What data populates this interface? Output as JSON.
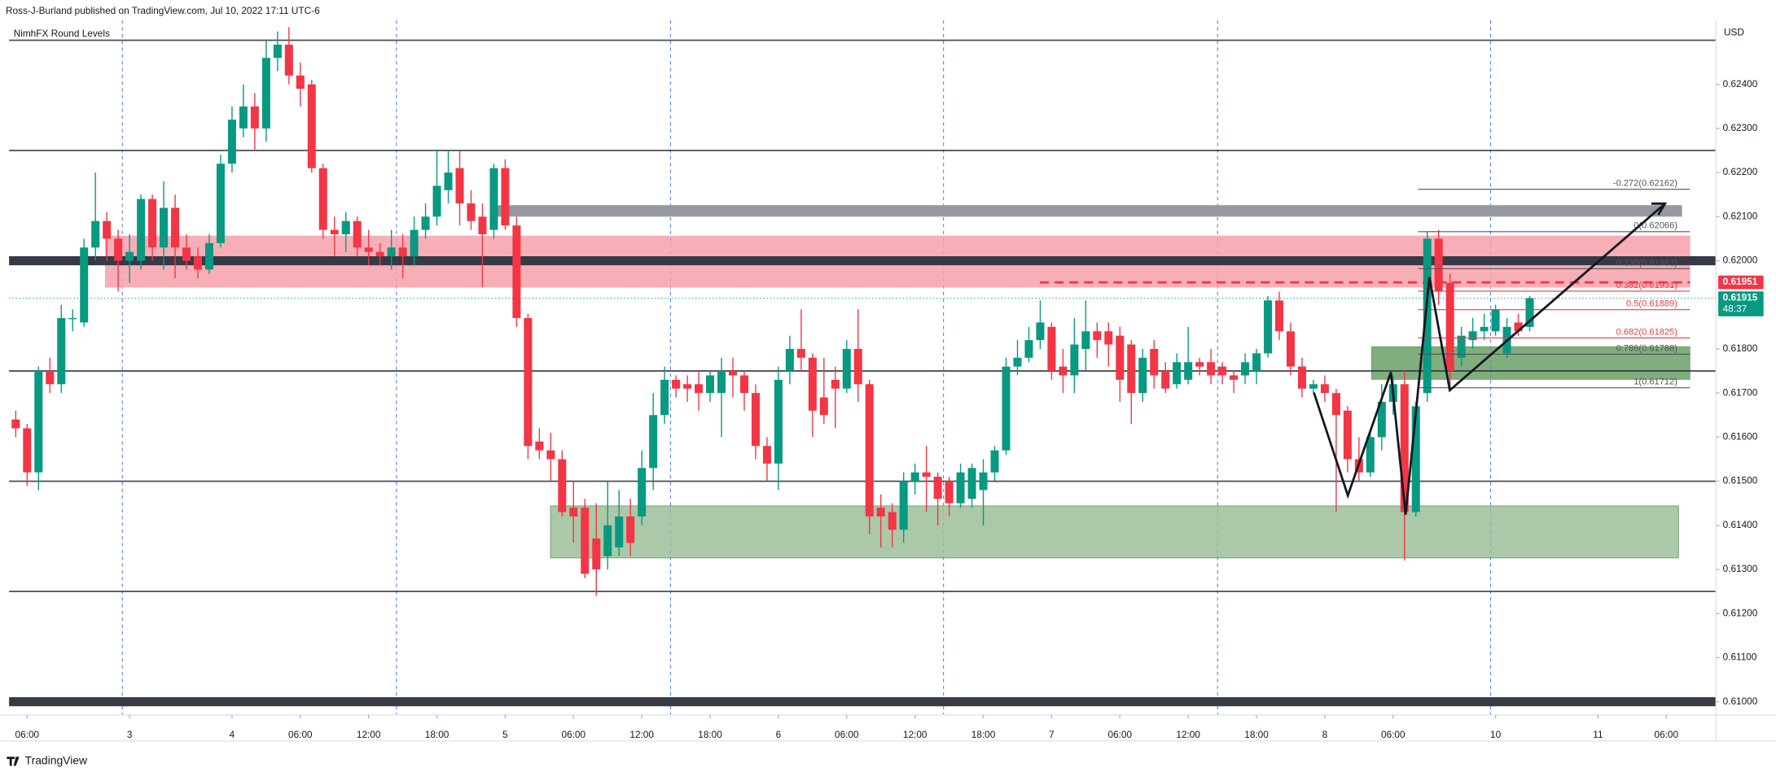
{
  "header": {
    "publisher": "Ross-J-Burland published on TradingView.com, Jul 10, 2022 17:11 UTC-6",
    "indicator": "NimhFX Round Levels",
    "currency": "USD",
    "brand": "TradingView"
  },
  "chart_data": {
    "type": "candlestick",
    "up_color": "#089981",
    "down_color": "#f23645",
    "categories": [
      null,
      "06:00",
      null,
      null,
      null,
      null,
      null,
      null,
      null,
      null,
      "3",
      null,
      null,
      null,
      null,
      null,
      null,
      null,
      null,
      "4",
      null,
      null,
      null,
      null,
      null,
      "06:00",
      null,
      null,
      null,
      null,
      null,
      "12:00",
      null,
      null,
      null,
      null,
      null,
      "18:00",
      null,
      null,
      null,
      null,
      null,
      "5",
      null,
      null,
      null,
      null,
      null,
      "06:00",
      null,
      null,
      null,
      null,
      null,
      "12:00",
      null,
      null,
      null,
      null,
      null,
      "18:00",
      null,
      null,
      null,
      null,
      null,
      "6",
      null,
      null,
      null,
      null,
      null,
      "06:00",
      null,
      null,
      null,
      null,
      null,
      "12:00",
      null,
      null,
      null,
      null,
      null,
      "18:00",
      null,
      null,
      null,
      null,
      null,
      "7",
      null,
      null,
      null,
      null,
      null,
      "06:00",
      null,
      null,
      null,
      null,
      null,
      "12:00",
      null,
      null,
      null,
      null,
      null,
      "18:00",
      null,
      null,
      null,
      null,
      null,
      "8",
      null,
      null,
      null,
      null,
      null,
      "06:00",
      null,
      null,
      null,
      null,
      null,
      null,
      null,
      null,
      "10",
      null,
      null,
      null,
      null,
      null,
      null,
      null,
      null,
      "11",
      null,
      null,
      null,
      null,
      null,
      "06:00",
      null,
      null,
      null,
      null
    ],
    "open": [
      0.6164,
      0.6162,
      0.6152,
      0.6175,
      0.6172,
      0.6187,
      0.6186,
      0.6203,
      0.6209,
      0.6205,
      0.62,
      0.62,
      0.6214,
      0.6203,
      0.6212,
      0.6203,
      0.6201,
      0.6198,
      0.6204,
      0.6222,
      0.623,
      0.6235,
      0.623,
      0.6246,
      0.6249,
      0.6242,
      0.624,
      0.6221,
      0.6207,
      0.6206,
      0.6209,
      0.6203,
      0.6202,
      0.6201,
      0.6203,
      0.6201,
      0.6207,
      0.621,
      0.6216,
      0.6221,
      0.6213,
      0.621,
      0.6207,
      0.6221,
      0.6208,
      0.6187,
      0.6159,
      0.6157,
      0.6155,
      0.6144,
      0.6144,
      0.6137,
      0.6133,
      0.6135,
      0.6142,
      0.6142,
      0.6153,
      0.6165,
      0.6173,
      0.6172,
      0.6172,
      0.617,
      0.617,
      0.6175,
      0.6174,
      0.617,
      0.6158,
      0.6154,
      0.6175,
      0.618,
      0.6178,
      0.6169,
      0.6173,
      0.6171,
      0.618,
      0.6172,
      0.6144,
      0.6143,
      0.6139,
      0.615,
      0.6152,
      0.6151,
      0.615,
      0.6145,
      0.6146,
      0.6148,
      0.6152,
      0.6157,
      0.6176,
      0.6178,
      0.6182,
      0.6185,
      0.6176,
      0.6174,
      0.618,
      0.6184,
      0.6184,
      0.6183,
      0.6181,
      0.617,
      0.618,
      0.6175,
      0.6172,
      0.6173,
      0.6177,
      0.6177,
      0.6176,
      0.6174,
      0.6174,
      0.6175,
      0.6179,
      0.6191,
      0.6184,
      0.6176,
      0.6171,
      0.6172,
      0.617,
      0.6166,
      0.6155,
      0.6152,
      0.616,
      0.6168,
      0.6172,
      0.6143,
      0.617,
      0.6205,
      0.6195,
      0.6178,
      0.6182,
      0.6184,
      0.6184,
      0.6179,
      0.6186,
      0.6185,
      null,
      null,
      null,
      null,
      null,
      null,
      null,
      null,
      null,
      null,
      null,
      null,
      null,
      null,
      null,
      null
    ],
    "high": [
      0.6166,
      0.6163,
      0.6176,
      0.6178,
      0.619,
      0.6189,
      0.6205,
      0.622,
      0.6211,
      0.6207,
      0.6206,
      0.6215,
      0.6215,
      0.6218,
      0.6215,
      0.6206,
      0.6203,
      0.6206,
      0.6224,
      0.6235,
      0.624,
      0.6238,
      0.625,
      0.6252,
      0.6253,
      0.6245,
      0.6241,
      0.6222,
      0.621,
      0.6211,
      0.621,
      0.6207,
      0.6204,
      0.6207,
      0.6206,
      0.621,
      0.6213,
      0.6225,
      0.6225,
      0.6225,
      0.6216,
      0.6213,
      0.6222,
      0.6223,
      0.621,
      0.6188,
      0.6162,
      0.6161,
      0.6157,
      0.615,
      0.6146,
      0.6145,
      0.615,
      0.6148,
      0.6146,
      0.6157,
      0.617,
      0.6176,
      0.6174,
      0.6174,
      0.6175,
      0.6175,
      0.6178,
      0.6178,
      0.6175,
      0.6172,
      0.616,
      0.6176,
      0.6183,
      0.6189,
      0.6179,
      0.6178,
      0.6176,
      0.6182,
      0.6189,
      0.6173,
      0.6147,
      0.6145,
      0.6152,
      0.6154,
      0.6158,
      0.6152,
      0.6151,
      0.6154,
      0.6154,
      0.6155,
      0.6158,
      0.6178,
      0.6182,
      0.6185,
      0.6191,
      0.6186,
      0.618,
      0.6187,
      0.6191,
      0.6186,
      0.6186,
      0.6185,
      0.6182,
      0.618,
      0.6182,
      0.6177,
      0.6179,
      0.6185,
      0.6178,
      0.618,
      0.6177,
      0.6175,
      0.6179,
      0.618,
      0.6192,
      0.6193,
      0.6186,
      0.6178,
      0.6173,
      0.6174,
      0.6171,
      0.6167,
      0.616,
      0.6161,
      0.6172,
      0.6174,
      0.6175,
      0.6168,
      0.62066,
      0.6207,
      0.6197,
      0.6185,
      0.6187,
      0.6188,
      0.619,
      0.6187,
      0.6188,
      0.6192,
      null,
      null,
      null,
      null,
      null,
      null,
      null,
      null,
      null,
      null,
      null,
      null,
      null,
      null,
      null,
      null
    ],
    "low": [
      0.616,
      0.6149,
      0.6148,
      0.617,
      0.617,
      0.6184,
      0.6185,
      0.62,
      0.62,
      0.6193,
      0.6195,
      0.6198,
      0.62,
      0.6198,
      0.6196,
      0.6198,
      0.6196,
      0.6197,
      0.6203,
      0.622,
      0.6228,
      0.6225,
      0.6227,
      0.6243,
      0.624,
      0.6235,
      0.622,
      0.6205,
      0.6201,
      0.6202,
      0.6201,
      0.6199,
      0.6199,
      0.6198,
      0.6196,
      0.6199,
      0.6205,
      0.6208,
      0.6213,
      0.6208,
      0.6207,
      0.6194,
      0.6205,
      0.6207,
      0.6185,
      0.6155,
      0.6155,
      0.615,
      0.6142,
      0.6136,
      0.6128,
      0.6124,
      0.613,
      0.6133,
      0.6133,
      0.614,
      0.6148,
      0.6163,
      0.6169,
      0.6168,
      0.6166,
      0.6168,
      0.616,
      0.6169,
      0.6166,
      0.6155,
      0.615,
      0.6148,
      0.6172,
      0.6175,
      0.616,
      0.6163,
      0.6162,
      0.617,
      0.6168,
      0.6138,
      0.6135,
      0.6135,
      0.6136,
      0.6147,
      0.6143,
      0.614,
      0.6142,
      0.6144,
      0.6144,
      0.614,
      0.615,
      0.6156,
      0.6174,
      0.6177,
      0.618,
      0.6173,
      0.617,
      0.617,
      0.6175,
      0.6178,
      0.6176,
      0.6168,
      0.6163,
      0.6168,
      0.6171,
      0.617,
      0.6171,
      0.6172,
      0.6174,
      0.6172,
      0.6172,
      0.617,
      0.6172,
      0.6172,
      0.6178,
      0.6182,
      0.6174,
      0.6169,
      0.617,
      0.6168,
      0.6143,
      0.6152,
      0.615,
      0.6151,
      0.6157,
      0.6165,
      0.6132,
      0.6142,
      0.6168,
      0.619,
      0.6171,
      0.6176,
      0.618,
      0.6182,
      0.6183,
      0.6178,
      0.6183,
      0.6184,
      null,
      null,
      null,
      null,
      null,
      null,
      null,
      null,
      null,
      null,
      null,
      null,
      null,
      null,
      null,
      null
    ],
    "close": [
      0.6162,
      0.6152,
      0.6175,
      0.6172,
      0.6187,
      0.6187,
      0.6203,
      0.6209,
      0.6205,
      0.62,
      0.6202,
      0.6214,
      0.6203,
      0.6212,
      0.6203,
      0.62,
      0.6198,
      0.6204,
      0.6222,
      0.6232,
      0.6235,
      0.623,
      0.6246,
      0.6249,
      0.6242,
      0.6239,
      0.6221,
      0.6207,
      0.6206,
      0.6209,
      0.6203,
      0.6202,
      0.6201,
      0.6203,
      0.6201,
      0.6207,
      0.621,
      0.6217,
      0.622,
      0.6213,
      0.6209,
      0.6206,
      0.6221,
      0.6208,
      0.6187,
      0.6158,
      0.6157,
      0.6155,
      0.6143,
      0.6142,
      0.6129,
      0.613,
      0.614,
      0.6142,
      0.6136,
      0.6153,
      0.6165,
      0.6173,
      0.6171,
      0.6171,
      0.617,
      0.6174,
      0.6175,
      0.6174,
      0.617,
      0.6158,
      0.6154,
      0.6173,
      0.618,
      0.6178,
      0.6166,
      0.6165,
      0.6171,
      0.618,
      0.6172,
      0.6142,
      0.6142,
      0.6139,
      0.615,
      0.6152,
      0.6151,
      0.6146,
      0.6145,
      0.6152,
      0.6153,
      0.6152,
      0.6157,
      0.6176,
      0.6178,
      0.6182,
      0.6186,
      0.6175,
      0.6174,
      0.6181,
      0.6184,
      0.6182,
      0.6181,
      0.6173,
      0.617,
      0.6178,
      0.6174,
      0.6171,
      0.6177,
      0.6177,
      0.6176,
      0.6174,
      0.6174,
      0.6173,
      0.6177,
      0.6179,
      0.6191,
      0.6184,
      0.6176,
      0.6171,
      0.6172,
      0.617,
      0.6165,
      0.6155,
      0.6152,
      0.616,
      0.6168,
      0.6172,
      0.6143,
      0.6167,
      0.6205,
      0.6193,
      0.6175,
      0.6183,
      0.6184,
      0.6185,
      0.6189,
      0.6185,
      0.6184,
      0.61915,
      null,
      null,
      null,
      null,
      null,
      null,
      null,
      null,
      null,
      null,
      null,
      null,
      null,
      null,
      null,
      null
    ],
    "ylim": [
      0.6097,
      0.6254
    ],
    "yticks": [
      {
        "value": 0.61,
        "label": "0.61000"
      },
      {
        "value": 0.611,
        "label": "0.61100"
      },
      {
        "value": 0.612,
        "label": "0.61200"
      },
      {
        "value": 0.613,
        "label": "0.61300"
      },
      {
        "value": 0.614,
        "label": "0.61400"
      },
      {
        "value": 0.615,
        "label": "0.61500"
      },
      {
        "value": 0.616,
        "label": "0.61600"
      },
      {
        "value": 0.617,
        "label": "0.61700"
      },
      {
        "value": 0.618,
        "label": "0.61800"
      },
      {
        "value": 0.62,
        "label": "0.62000"
      },
      {
        "value": 0.621,
        "label": "0.62100"
      },
      {
        "value": 0.622,
        "label": "0.62200"
      },
      {
        "value": 0.623,
        "label": "0.62300"
      },
      {
        "value": 0.624,
        "label": "0.62400"
      }
    ],
    "round_levels": [
      {
        "value": 0.625,
        "weight": "light"
      },
      {
        "value": 0.6225,
        "weight": "light"
      },
      {
        "value": 0.62,
        "weight": "heavy"
      },
      {
        "value": 0.6175,
        "weight": "light"
      },
      {
        "value": 0.615,
        "weight": "light"
      },
      {
        "value": 0.6125,
        "weight": "light"
      },
      {
        "value": 0.61,
        "weight": "heavy"
      }
    ],
    "zones": [
      {
        "low": 0.6194,
        "high": 0.62056,
        "color": "#f7a1ab"
      },
      {
        "low": 0.621,
        "high": 0.62126,
        "color": "#9598a1"
      },
      {
        "low": 0.61326,
        "high": 0.61444,
        "color": "#9dbf9a"
      },
      {
        "low": 0.61731,
        "high": 0.61805,
        "color": "#6aa067"
      }
    ],
    "fib": [
      {
        "label": "-0.272(0.62162)",
        "value": 0.62162,
        "color": "#555"
      },
      {
        "label": "0(0.62066)",
        "value": 0.62066,
        "color": "#555"
      },
      {
        "label": "0.236(0.61982)",
        "value": 0.61982,
        "color": "#555"
      },
      {
        "label": "0.382(0.61931)",
        "value": 0.61931,
        "color": "#f23645"
      },
      {
        "label": "0.5(0.61889)",
        "value": 0.61889,
        "color": "#f23645"
      },
      {
        "label": "0.682(0.61825)",
        "value": 0.61825,
        "color": "#f23645"
      },
      {
        "label": "0.786(0.61788)",
        "value": 0.61788,
        "color": "#555"
      },
      {
        "label": "1(0.61712)",
        "value": 0.61712,
        "color": "#555"
      }
    ],
    "marked_price": 0.61951,
    "last_price": 0.61915,
    "countdown": "48:37"
  }
}
